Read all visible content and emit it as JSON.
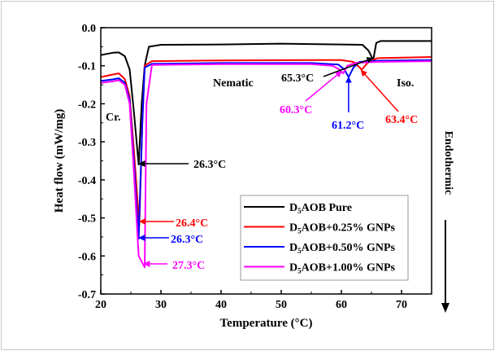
{
  "chart_data": {
    "type": "line",
    "xlabel": "Temperature (°C)",
    "ylabel": "Heat flow (mW/mg)",
    "side_label": "Endothermic",
    "xlim": [
      20,
      75
    ],
    "ylim": [
      -0.7,
      0.0
    ],
    "xticks": [
      20,
      30,
      40,
      50,
      60,
      70
    ],
    "yticks": [
      0.0,
      -0.1,
      -0.2,
      -0.3,
      -0.4,
      -0.5,
      -0.6,
      -0.7
    ],
    "ytick_labels": [
      "0.0",
      "-0.1",
      "-0.2",
      "-0.3",
      "-0.4",
      "-0.5",
      "-0.6",
      "-0.7"
    ],
    "grid": false,
    "legend_placement": "bottom-right",
    "series": [
      {
        "name": "D5AOB Pure",
        "legend_main": "D",
        "legend_sub": "5",
        "legend_rest": "AOB Pure",
        "color": "#000000",
        "x": [
          20,
          22,
          23,
          24,
          24.8,
          25.5,
          26.3,
          26.8,
          27.3,
          28,
          30,
          40,
          50,
          60,
          63.5,
          64.5,
          65.3,
          65.8,
          66.5,
          75
        ],
        "y": [
          -0.072,
          -0.066,
          -0.065,
          -0.075,
          -0.11,
          -0.22,
          -0.36,
          -0.2,
          -0.1,
          -0.05,
          -0.045,
          -0.044,
          -0.042,
          -0.044,
          -0.045,
          -0.06,
          -0.085,
          -0.04,
          -0.035,
          -0.035
        ]
      },
      {
        "name": "D5AOB+0.25% GNPs",
        "legend_main": "D",
        "legend_sub": "5",
        "legend_rest": "AOB+0.25% GNPs",
        "color": "#ff0000",
        "x": [
          20,
          22,
          23,
          24,
          24.8,
          25.5,
          26.4,
          26.9,
          27.3,
          28.5,
          40,
          55,
          60,
          62,
          63.4,
          64.5,
          66,
          75
        ],
        "y": [
          -0.13,
          -0.123,
          -0.12,
          -0.135,
          -0.18,
          -0.32,
          -0.52,
          -0.25,
          -0.1,
          -0.088,
          -0.086,
          -0.085,
          -0.085,
          -0.09,
          -0.11,
          -0.09,
          -0.08,
          -0.077
        ]
      },
      {
        "name": "D5AOB+0.50% GNPs",
        "legend_main": "D",
        "legend_sub": "5",
        "legend_rest": "AOB+0.50% GNPs",
        "color": "#0000ff",
        "x": [
          20,
          22,
          23,
          24,
          24.8,
          25.5,
          26.3,
          26.9,
          27.3,
          28.5,
          40,
          55,
          59.5,
          60.5,
          61.2,
          62,
          63,
          66,
          75
        ],
        "y": [
          -0.14,
          -0.136,
          -0.133,
          -0.145,
          -0.19,
          -0.35,
          -0.555,
          -0.25,
          -0.105,
          -0.095,
          -0.093,
          -0.093,
          -0.097,
          -0.11,
          -0.13,
          -0.105,
          -0.09,
          -0.087,
          -0.085
        ]
      },
      {
        "name": "D5AOB+1.00% GNPs",
        "legend_main": "D",
        "legend_sub": "5",
        "legend_rest": "AOB+1.00% GNPs",
        "color": "#ff00ff",
        "x": [
          20,
          22,
          23,
          24,
          24.8,
          25.5,
          26.3,
          27.3,
          27.6,
          28.5,
          40,
          55,
          58.5,
          59.5,
          60.3,
          61,
          62.5,
          66,
          75
        ],
        "y": [
          -0.145,
          -0.141,
          -0.138,
          -0.15,
          -0.2,
          -0.38,
          -0.6,
          -0.63,
          -0.2,
          -0.098,
          -0.096,
          -0.096,
          -0.1,
          -0.108,
          -0.12,
          -0.1,
          -0.092,
          -0.09,
          -0.088
        ]
      }
    ],
    "annotations": [
      {
        "text": "Cr."
      },
      {
        "text": "Nematic"
      },
      {
        "text": "Iso."
      },
      {
        "text": "26.3°C",
        "color": "#000000"
      },
      {
        "text": "26.4°C",
        "color": "#ff0000"
      },
      {
        "text": "26.3°C",
        "color": "#0000ff"
      },
      {
        "text": "27.3°C",
        "color": "#ff00ff"
      },
      {
        "text": "65.3°C",
        "color": "#000000"
      },
      {
        "text": "60.3°C",
        "color": "#ff00ff"
      },
      {
        "text": "61.2°C",
        "color": "#0000ff"
      },
      {
        "text": "63.4°C",
        "color": "#ff0000"
      }
    ]
  }
}
